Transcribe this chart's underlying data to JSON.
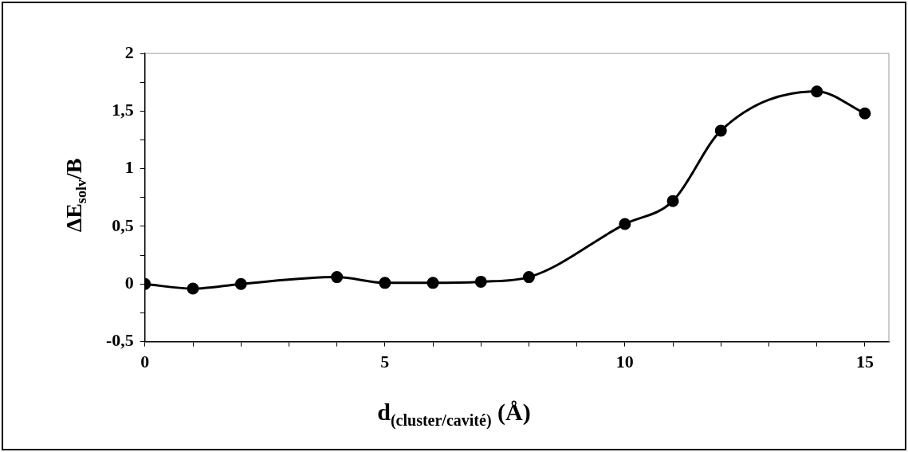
{
  "chart_data": {
    "type": "line",
    "xlabel": "d$_{(cluster/cavité)}$ (Å)",
    "ylabel": "ΔE$_{solv}$/B",
    "x": [
      0,
      1,
      2,
      4,
      5,
      6,
      7,
      8,
      10,
      11,
      12,
      14,
      15
    ],
    "series": [
      {
        "color": "#000000",
        "values": [
          0,
          -0.04,
          0,
          0.06,
          0.01,
          0.01,
          0.02,
          0.06,
          0.52,
          0.72,
          1.33,
          1.67,
          1.48
        ]
      }
    ],
    "xlim": [
      0,
      15.5
    ],
    "ylim": [
      -0.5,
      2
    ],
    "xticks": [
      0,
      {
        "value": 1,
        "label": null
      },
      {
        "value": 2,
        "label": null
      },
      {
        "value": 3,
        "label": null
      },
      {
        "value": 4,
        "label": null
      },
      5,
      {
        "value": 6,
        "label": null
      },
      {
        "value": 7,
        "label": null
      },
      {
        "value": 8,
        "label": null
      },
      {
        "value": 9,
        "label": null
      },
      10,
      {
        "value": 11,
        "label": null
      },
      {
        "value": 12,
        "label": null
      },
      {
        "value": 13,
        "label": null
      },
      {
        "value": 14,
        "label": null
      },
      15
    ],
    "yticks": [
      {
        "value": -0.5,
        "label": "-0,5"
      },
      {
        "value": -0.25,
        "label": null
      },
      0,
      {
        "value": 0.25,
        "label": null
      },
      {
        "value": 0.5,
        "label": "0,5"
      },
      {
        "value": 0.75,
        "label": null
      },
      1,
      {
        "value": 1.25,
        "label": null
      },
      {
        "value": 1.5,
        "label": "1,5"
      },
      {
        "value": 1.75,
        "label": null
      },
      2
    ],
    "marker": "circle",
    "line_style": "solid",
    "grid": false
  }
}
